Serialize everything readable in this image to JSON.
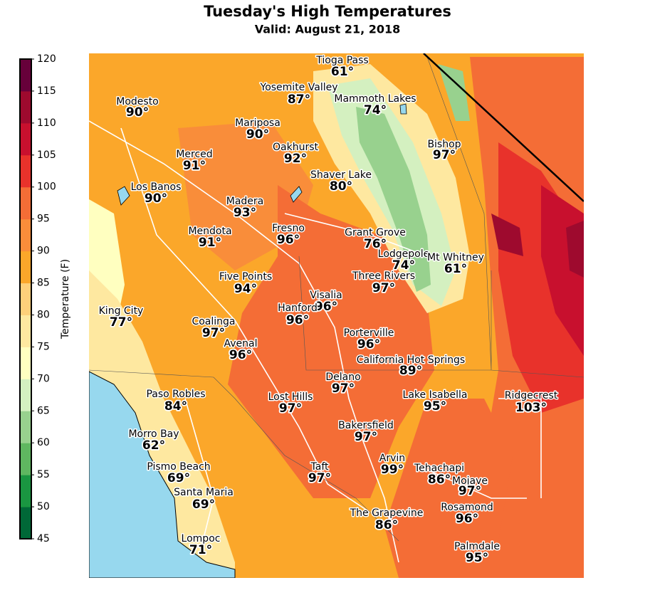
{
  "title": "Tuesday's High Temperatures",
  "subtitle": "Valid: August 21, 2018",
  "colorbar": {
    "label": "Temperature (F)",
    "ticks": [
      45,
      50,
      55,
      60,
      65,
      70,
      75,
      80,
      85,
      90,
      95,
      100,
      105,
      110,
      115,
      120
    ],
    "colors": [
      "#006837",
      "#1a9641",
      "#5fb760",
      "#98d18e",
      "#d4f0c0",
      "#ffffc0",
      "#fee8a0",
      "#fed07a",
      "#fba72a",
      "#f98d3a",
      "#f46d36",
      "#e8322b",
      "#c8102e",
      "#9e0a2e",
      "#67003a"
    ]
  },
  "cities": [
    {
      "name": "Tioga Pass",
      "temp": "61°"
    },
    {
      "name": "Modesto",
      "temp": "90°"
    },
    {
      "name": "Yosemite Valley",
      "temp": "87°"
    },
    {
      "name": "Mammoth Lakes",
      "temp": "74°"
    },
    {
      "name": "Mariposa",
      "temp": "90°"
    },
    {
      "name": "Oakhurst",
      "temp": "92°"
    },
    {
      "name": "Bishop",
      "temp": "97°"
    },
    {
      "name": "Merced",
      "temp": "91°"
    },
    {
      "name": "Shaver Lake",
      "temp": "80°"
    },
    {
      "name": "Los Banos",
      "temp": "90°"
    },
    {
      "name": "Madera",
      "temp": "93°"
    },
    {
      "name": "Mendota",
      "temp": "91°"
    },
    {
      "name": "Fresno",
      "temp": "96°"
    },
    {
      "name": "Grant Grove",
      "temp": "76°"
    },
    {
      "name": "Lodgepole",
      "temp": "74°"
    },
    {
      "name": "Mt Whitney",
      "temp": "61°"
    },
    {
      "name": "Five Points",
      "temp": "94°"
    },
    {
      "name": "Three Rivers",
      "temp": "97°"
    },
    {
      "name": "Visalia",
      "temp": "96°"
    },
    {
      "name": "King City",
      "temp": "77°"
    },
    {
      "name": "Hanford",
      "temp": "96°"
    },
    {
      "name": "Coalinga",
      "temp": "97°"
    },
    {
      "name": "Porterville",
      "temp": "96°"
    },
    {
      "name": "Avenal",
      "temp": "96°"
    },
    {
      "name": "California Hot Springs",
      "temp": "89°"
    },
    {
      "name": "Delano",
      "temp": "97°"
    },
    {
      "name": "Paso Robles",
      "temp": "84°"
    },
    {
      "name": "Lost Hills",
      "temp": "97°"
    },
    {
      "name": "Lake Isabella",
      "temp": "95°"
    },
    {
      "name": "Ridgecrest",
      "temp": "103°"
    },
    {
      "name": "Bakersfield",
      "temp": "97°"
    },
    {
      "name": "Morro Bay",
      "temp": "62°"
    },
    {
      "name": "Arvin",
      "temp": "99°"
    },
    {
      "name": "Pismo Beach",
      "temp": "69°"
    },
    {
      "name": "Taft",
      "temp": "97°"
    },
    {
      "name": "Tehachapi",
      "temp": "86°"
    },
    {
      "name": "Mojave",
      "temp": "97°"
    },
    {
      "name": "Santa Maria",
      "temp": "69°"
    },
    {
      "name": "Rosamond",
      "temp": "96°"
    },
    {
      "name": "The Grapevine",
      "temp": "86°"
    },
    {
      "name": "Lompoc",
      "temp": "71°"
    },
    {
      "name": "Palmdale",
      "temp": "95°"
    }
  ]
}
